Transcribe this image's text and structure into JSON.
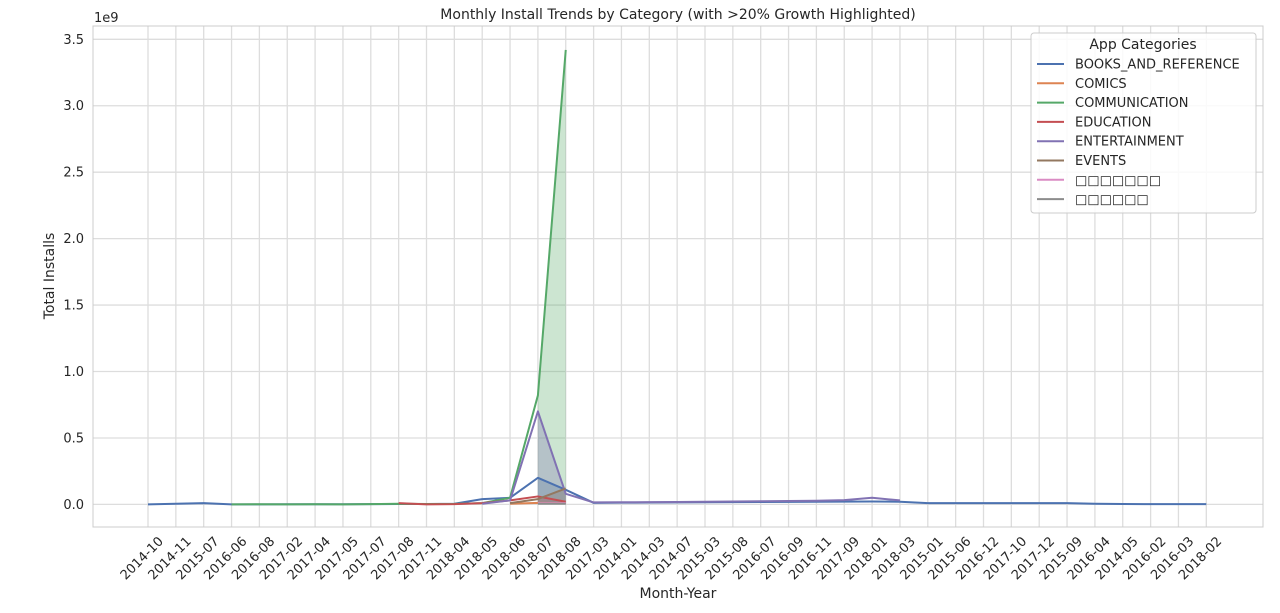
{
  "chart_data": {
    "type": "line",
    "title": "Monthly Install Trends by Category (with >20% Growth Highlighted)",
    "xlabel": "Month-Year",
    "ylabel": "Total Installs",
    "y_offset_label": "1e9",
    "ylim": [
      -0.17,
      3.6
    ],
    "y_ticks": [
      0.0,
      0.5,
      1.0,
      1.5,
      2.0,
      2.5,
      3.0,
      3.5
    ],
    "y_tick_labels": [
      "0.0",
      "0.5",
      "1.0",
      "1.5",
      "2.0",
      "2.5",
      "3.0",
      "3.5"
    ],
    "grid": true,
    "legend_position": "top-right",
    "legend_title": "App Categories",
    "categories": [
      "2014-10",
      "2014-11",
      "2015-07",
      "2016-06",
      "2016-08",
      "2017-02",
      "2017-04",
      "2017-05",
      "2017-07",
      "2017-08",
      "2017-11",
      "2018-04",
      "2018-05",
      "2018-06",
      "2018-07",
      "2018-08",
      "2017-03",
      "2014-01",
      "2014-03",
      "2014-07",
      "2015-03",
      "2015-08",
      "2016-07",
      "2016-09",
      "2016-11",
      "2017-09",
      "2018-01",
      "2018-03",
      "2015-01",
      "2015-06",
      "2016-12",
      "2017-10",
      "2017-12",
      "2015-09",
      "2016-04",
      "2014-05",
      "2016-02",
      "2016-03",
      "2018-02"
    ],
    "series": [
      {
        "name": "BOOKS_AND_REFERENCE",
        "color": "#4c72b0",
        "points": [
          [
            0,
            0.0
          ],
          [
            1,
            0.005
          ],
          [
            2,
            0.01
          ],
          [
            3,
            0.0
          ],
          [
            4,
            0.0
          ],
          [
            5,
            0.001
          ],
          [
            6,
            0.001
          ],
          [
            7,
            0.001
          ],
          [
            8,
            0.002
          ],
          [
            9,
            0.003
          ],
          [
            10,
            0.003
          ],
          [
            11,
            0.005
          ],
          [
            12,
            0.04
          ],
          [
            13,
            0.05
          ],
          [
            14,
            0.2
          ],
          [
            15,
            0.11
          ],
          [
            16,
            0.012
          ],
          [
            17,
            0.013
          ],
          [
            18,
            0.014
          ],
          [
            19,
            0.015
          ],
          [
            20,
            0.016
          ],
          [
            21,
            0.017
          ],
          [
            22,
            0.018
          ],
          [
            23,
            0.019
          ],
          [
            24,
            0.02
          ],
          [
            25,
            0.021
          ],
          [
            26,
            0.022
          ],
          [
            27,
            0.02
          ],
          [
            28,
            0.01
          ],
          [
            29,
            0.01
          ],
          [
            30,
            0.01
          ],
          [
            31,
            0.01
          ],
          [
            32,
            0.01
          ],
          [
            33,
            0.01
          ],
          [
            34,
            0.005
          ],
          [
            35,
            0.003
          ],
          [
            36,
            0.002
          ],
          [
            37,
            0.002
          ],
          [
            38,
            0.002
          ]
        ]
      },
      {
        "name": "COMICS",
        "color": "#dd8452",
        "points": [
          [
            13,
            0.005
          ],
          [
            14,
            0.012
          ],
          [
            15,
            0.01
          ]
        ]
      },
      {
        "name": "COMMUNICATION",
        "color": "#55a868",
        "points": [
          [
            3,
            0.0
          ],
          [
            4,
            0.001
          ],
          [
            5,
            0.0
          ],
          [
            6,
            0.001
          ],
          [
            7,
            0.0
          ],
          [
            8,
            0.002
          ],
          [
            9,
            0.005
          ],
          [
            10,
            0.003
          ],
          [
            11,
            0.004
          ],
          [
            12,
            0.01
          ],
          [
            13,
            0.05
          ],
          [
            14,
            0.82
          ],
          [
            15,
            3.42
          ]
        ]
      },
      {
        "name": "EDUCATION",
        "color": "#c44e52",
        "points": [
          [
            9,
            0.01
          ],
          [
            10,
            0.0
          ],
          [
            11,
            0.002
          ],
          [
            12,
            0.01
          ],
          [
            13,
            0.03
          ],
          [
            14,
            0.06
          ],
          [
            15,
            0.02
          ]
        ]
      },
      {
        "name": "ENTERTAINMENT",
        "color": "#8172b3",
        "points": [
          [
            12,
            0.005
          ],
          [
            13,
            0.03
          ],
          [
            14,
            0.7
          ],
          [
            15,
            0.08
          ],
          [
            16,
            0.015
          ],
          [
            17,
            0.016
          ],
          [
            18,
            0.017
          ],
          [
            19,
            0.018
          ],
          [
            20,
            0.02
          ],
          [
            21,
            0.022
          ],
          [
            22,
            0.024
          ],
          [
            23,
            0.026
          ],
          [
            24,
            0.028
          ],
          [
            25,
            0.032
          ],
          [
            26,
            0.05
          ],
          [
            27,
            0.03
          ]
        ]
      },
      {
        "name": "EVENTS",
        "color": "#937860",
        "points": [
          [
            13,
            0.01
          ],
          [
            14,
            0.04
          ],
          [
            15,
            0.12
          ]
        ]
      },
      {
        "name": "□□□□□□□",
        "color": "#da8bc3",
        "points": [
          [
            14,
            0.01
          ],
          [
            15,
            0.01
          ]
        ]
      },
      {
        "name": "□□□□□□",
        "color": "#8c8c8c",
        "points": [
          [
            14,
            0.005
          ],
          [
            15,
            0.005
          ]
        ]
      }
    ],
    "growth_highlight": {
      "from_index": 14,
      "to_index": 15
    }
  }
}
